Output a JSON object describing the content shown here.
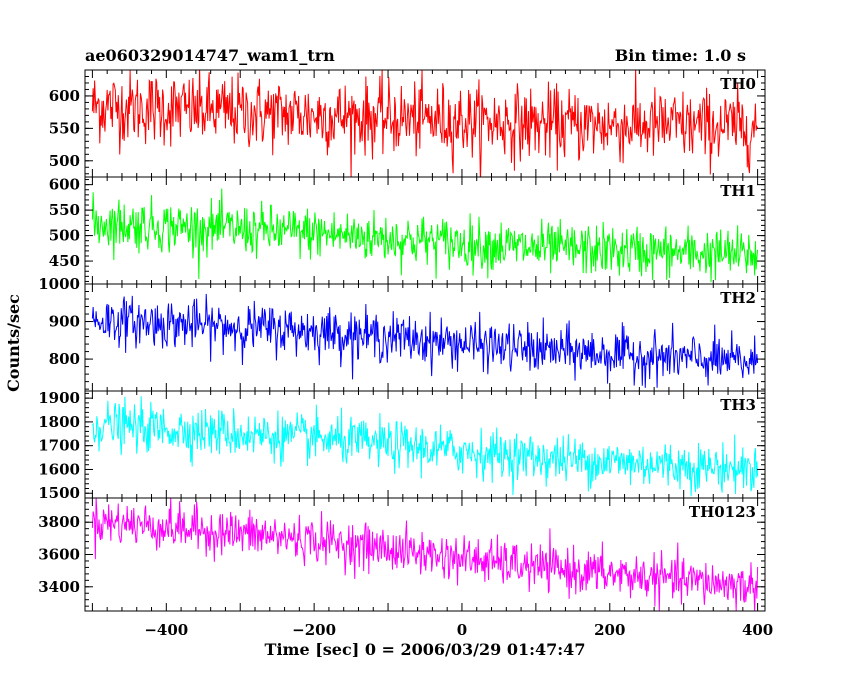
{
  "chart_data": {
    "type": "line",
    "title": "ae060329014747_wam1_trn",
    "subtitle": "Bin time: 1.0 s",
    "xlabel": "Time [sec] 0 = 2006/03/29 01:47:47",
    "ylabel": "Counts/sec",
    "xlim": [
      -510,
      410
    ],
    "xticks": [
      -400,
      -200,
      0,
      200,
      400
    ],
    "bin_time_s": 1.0,
    "panels": [
      {
        "name": "TH0",
        "color": "#ff0000",
        "ylim": [
          475,
          640
        ],
        "yticks": [
          500,
          550,
          600
        ],
        "trend": {
          "x": [
            -500,
            -200,
            100,
            400
          ],
          "y": [
            585,
            570,
            557,
            552
          ]
        },
        "scatter": 28
      },
      {
        "name": "TH1",
        "color": "#00ff00",
        "ylim": [
          405,
          615
        ],
        "yticks": [
          450,
          500,
          550,
          600
        ],
        "trend": {
          "x": [
            -500,
            -200,
            100,
            400
          ],
          "y": [
            525,
            505,
            475,
            462
          ]
        },
        "scatter": 25
      },
      {
        "name": "TH2",
        "color": "#0000ff",
        "ylim": [
          715,
          1000
        ],
        "yticks": [
          800,
          900,
          1000
        ],
        "trend": {
          "x": [
            -500,
            -200,
            100,
            400
          ],
          "y": [
            905,
            875,
            825,
            790
          ]
        },
        "scatter": 32
      },
      {
        "name": "TH3",
        "color": "#00ffff",
        "ylim": [
          1480,
          1930
        ],
        "yticks": [
          1500,
          1600,
          1700,
          1800,
          1900
        ],
        "trend": {
          "x": [
            -500,
            -200,
            100,
            400
          ],
          "y": [
            1790,
            1730,
            1650,
            1600
          ]
        },
        "scatter": 50
      },
      {
        "name": "TH0123",
        "color": "#ff00ff",
        "ylim": [
          3250,
          3950
        ],
        "yticks": [
          3400,
          3600,
          3800
        ],
        "trend": {
          "x": [
            -500,
            -200,
            100,
            400
          ],
          "y": [
            3810,
            3690,
            3520,
            3400
          ]
        },
        "scatter": 70
      }
    ]
  }
}
